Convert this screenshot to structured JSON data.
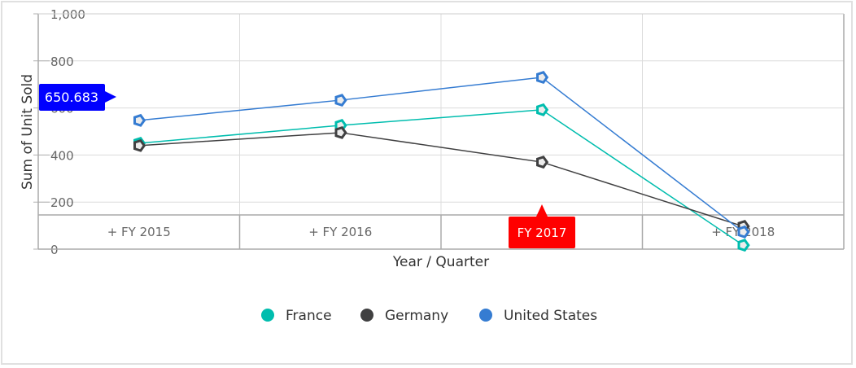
{
  "chart_data": {
    "type": "line",
    "title": "",
    "xlabel": "Year / Quarter",
    "ylabel": "Sum of Unit Sold",
    "ylim": [
      0,
      1000
    ],
    "yticks": [
      "0",
      "200",
      "400",
      "600",
      "800",
      "1,000"
    ],
    "grid": true,
    "legend_position": "bottom",
    "categories": [
      "+ FY 2015",
      "+ FY 2016",
      "+ FY 2017",
      "+ FY 2018"
    ],
    "series": [
      {
        "name": "France",
        "color": "#00bdae",
        "values": [
          450,
          526,
          592,
          17
        ]
      },
      {
        "name": "Germany",
        "color": "#404041",
        "values": [
          440,
          495,
          370,
          97
        ]
      },
      {
        "name": "United States",
        "color": "#357cd2",
        "values": [
          547,
          633,
          730,
          73
        ]
      }
    ],
    "annotations": {
      "y_crosshair_tooltip": "650.683",
      "x_crosshair_tooltip": "FY 2017"
    }
  },
  "colors": {
    "y_tooltip_bg": "#0000ff",
    "x_tooltip_bg": "#ff0000"
  }
}
